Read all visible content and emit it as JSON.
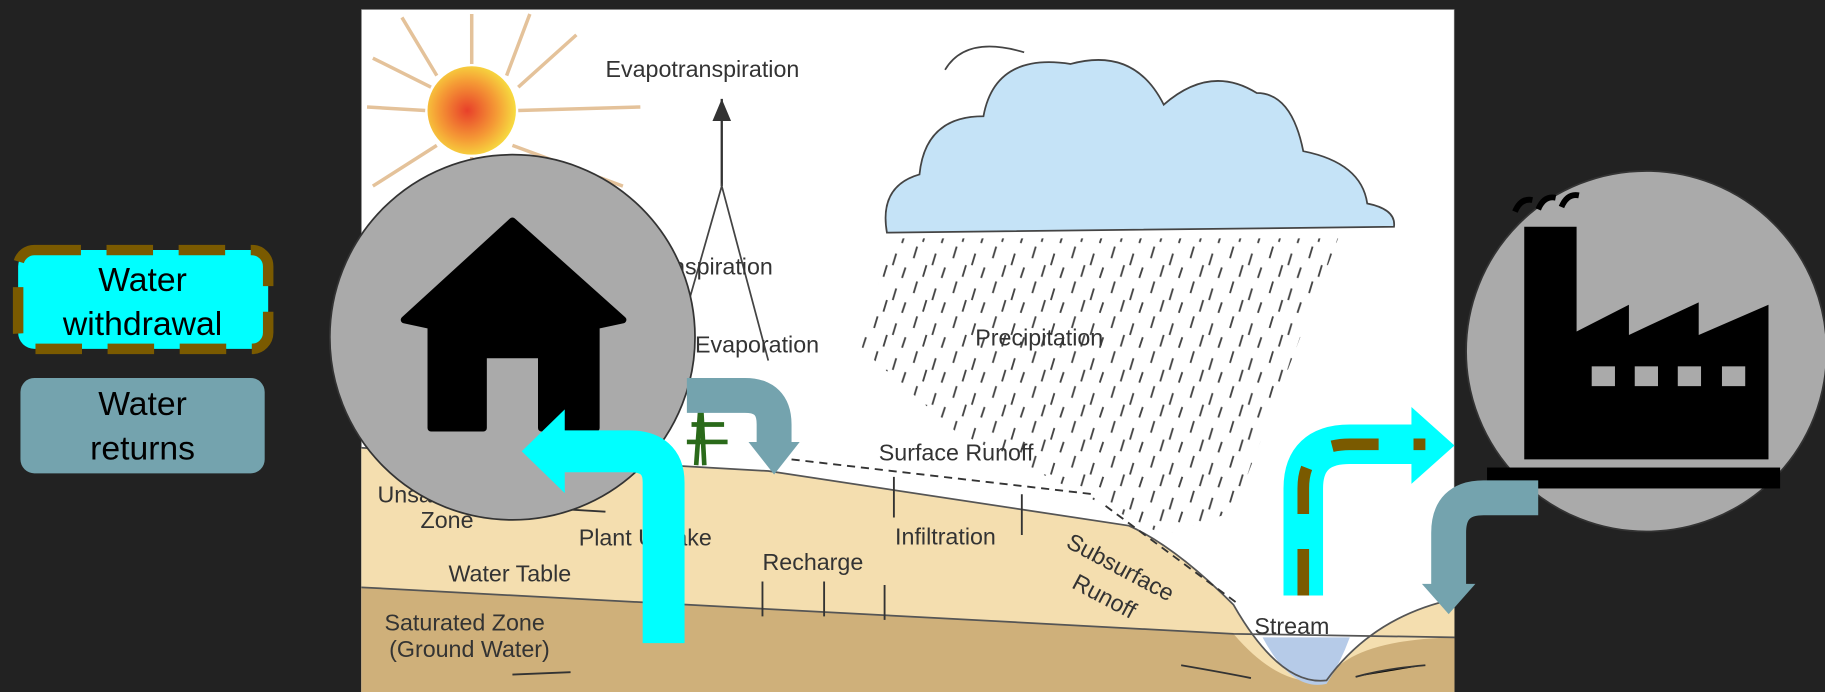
{
  "legend": {
    "items": [
      {
        "lines": [
          "Water",
          "withdrawal"
        ]
      },
      {
        "lines": [
          "Water",
          "returns"
        ]
      }
    ]
  },
  "diagram": {
    "labels": {
      "evapotranspiration": "Evapotranspiration",
      "transpiration": "Transpiration",
      "evaporation": "Evaporation",
      "precipitation": "Precipitation",
      "surface_runoff": "Surface Runoff",
      "unsaturated_zone": [
        "Unsaturated",
        "Zone"
      ],
      "plant_uptake": "Plant Uptake",
      "infiltration": "Infiltration",
      "recharge": "Recharge",
      "water_table": "Water Table",
      "saturated_zone": [
        "Saturated Zone",
        "(Ground Water)"
      ],
      "subsurface_runoff": [
        "Subsurface",
        "Runoff"
      ],
      "stream": "Stream"
    }
  }
}
